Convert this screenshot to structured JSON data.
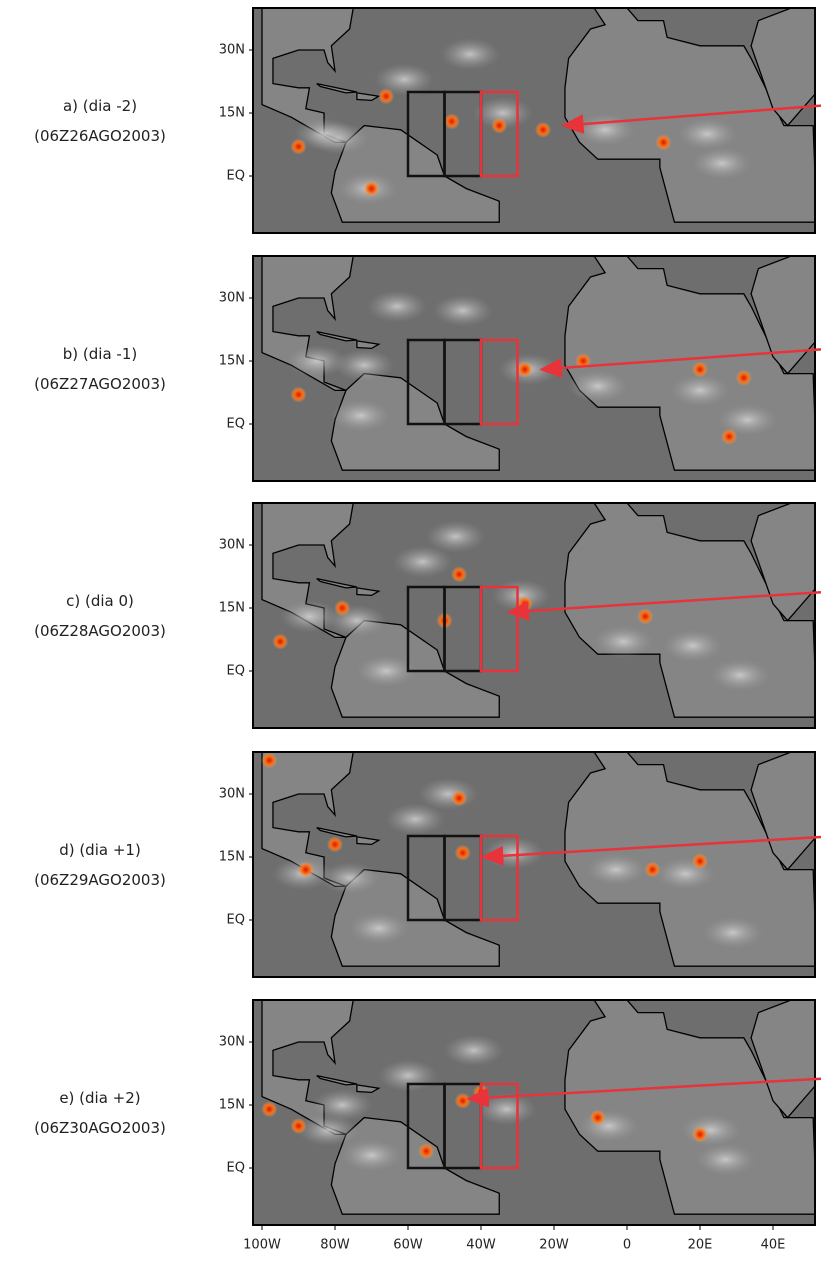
{
  "panels": [
    {
      "label": "a) (dia -2)",
      "date": "(06Z26AGO2003)"
    },
    {
      "label": "b) (dia -1)",
      "date": "(06Z27AGO2003)"
    },
    {
      "label": "c) (dia 0)",
      "date": "(06Z28AGO2003)"
    },
    {
      "label": "d) (dia +1)",
      "date": "(06Z29AGO2003)"
    },
    {
      "label": "e) (dia +2)",
      "date": "(06Z30AGO2003)"
    }
  ],
  "y_axis_labels": [
    "30N",
    "15N",
    "EQ"
  ],
  "x_axis_labels": [
    "100W",
    "80W",
    "60W",
    "40W",
    "20W",
    "0",
    "20E",
    "40E"
  ]
}
